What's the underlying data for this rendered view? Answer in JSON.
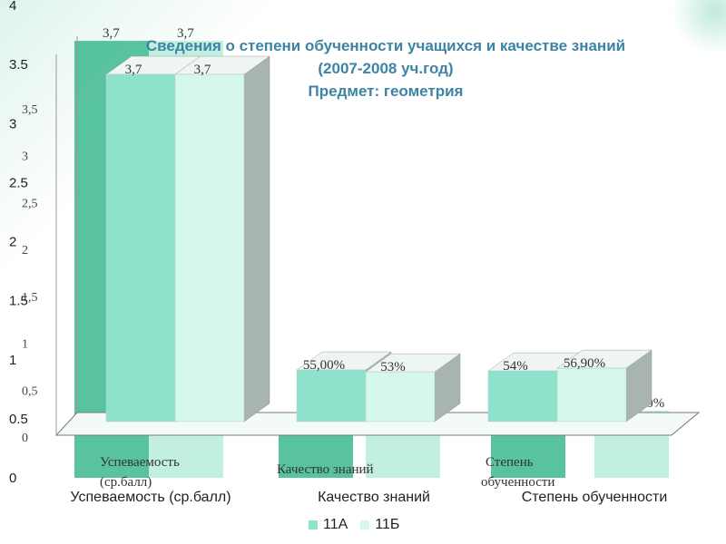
{
  "slide": {
    "title_lines": [
      "Сведения о степени обученности учащихся и качестве знаний",
      "(2007-2008 уч.год)",
      "Предмет: геометрия"
    ]
  },
  "chart_data": {
    "type": "bar",
    "categories": [
      "Успеваемость (ср.балл)",
      "Качество знаний",
      "Степень обученности"
    ],
    "series": [
      {
        "name": "11А",
        "values": [
          3.7,
          0.55,
          0.54
        ],
        "labels": [
          "3,7",
          "55,00%",
          "54%"
        ]
      },
      {
        "name": "11Б",
        "values": [
          3.7,
          0.53,
          0.569
        ],
        "labels": [
          "3,7",
          "53%",
          "56,90%"
        ]
      }
    ],
    "ylim": [
      0,
      4
    ],
    "y_ticks": [
      "0",
      "0.5",
      "1",
      "1.5",
      "2",
      "2.5",
      "3",
      "3.5",
      "4"
    ],
    "y_ticks_secondary": [
      "0",
      "0,5",
      "1",
      "1,5",
      "2",
      "2,5",
      "3",
      "3,5"
    ],
    "x_tick_labels_secondary": [
      "Успеваемость (ср.балл)",
      "Качество знаний",
      "Степень обученности"
    ],
    "legend_position": "bottom",
    "grid": false,
    "colors": {
      "series_1": "#8fe3cc",
      "series_2": "#d6f7ec",
      "back_series_1": "#3cb88e",
      "back_series_2": "#b6ecdb"
    }
  }
}
